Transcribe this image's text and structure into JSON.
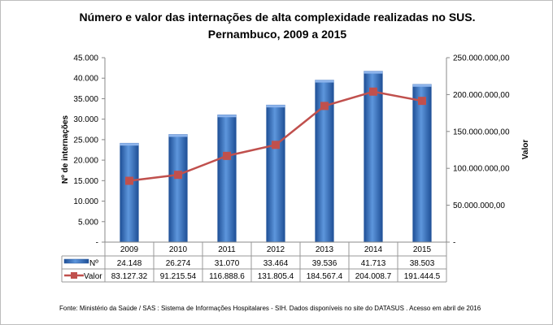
{
  "chart_data": {
    "type": "bar+line",
    "title": "Número e valor das internações de alta complexidade realizadas no SUS.",
    "subtitle": "Pernambuco, 2009 a 2015",
    "ylabel": "Nº de internações",
    "y2label": "Valor",
    "categories": [
      "2009",
      "2010",
      "2011",
      "2012",
      "2013",
      "2014",
      "2015"
    ],
    "ylim": [
      0,
      45000
    ],
    "y2lim": [
      0,
      250000000
    ],
    "yticks": [
      "-",
      "5.000",
      "10.000",
      "15.000",
      "20.000",
      "25.000",
      "30.000",
      "35.000",
      "40.000",
      "45.000"
    ],
    "y2ticks": [
      "-",
      "50.000.000,00",
      "100.000.000,00",
      "150.000.000,00",
      "200.000.000,00",
      "250.000.000,00"
    ],
    "series": [
      {
        "name": "Nº",
        "type": "bar",
        "color": "#3d75c4",
        "values": [
          24148,
          26274,
          31070,
          33464,
          39536,
          41713,
          38503
        ],
        "labels": [
          "24.148",
          "26.274",
          "31.070",
          "33.464",
          "39.536",
          "41.713",
          "38.503"
        ]
      },
      {
        "name": "Valor",
        "type": "line",
        "axis": "right",
        "color": "#c0504d",
        "values": [
          83127320,
          91215540,
          116888600,
          131805400,
          184567400,
          204008700,
          191444500
        ],
        "labels": [
          "83.127.32",
          "91.215.54",
          "116.888.6",
          "131.805.4",
          "184.567.4",
          "204.008.7",
          "191.444.5"
        ]
      }
    ],
    "grid": false,
    "legend": "data-table"
  },
  "footer": "Fonte:  Ministério da Saúde  / SAS : Sistema de Informações Hospitalares - SIH. Dados disponíveis no site do DATASUS . Acesso em abril de 2016"
}
